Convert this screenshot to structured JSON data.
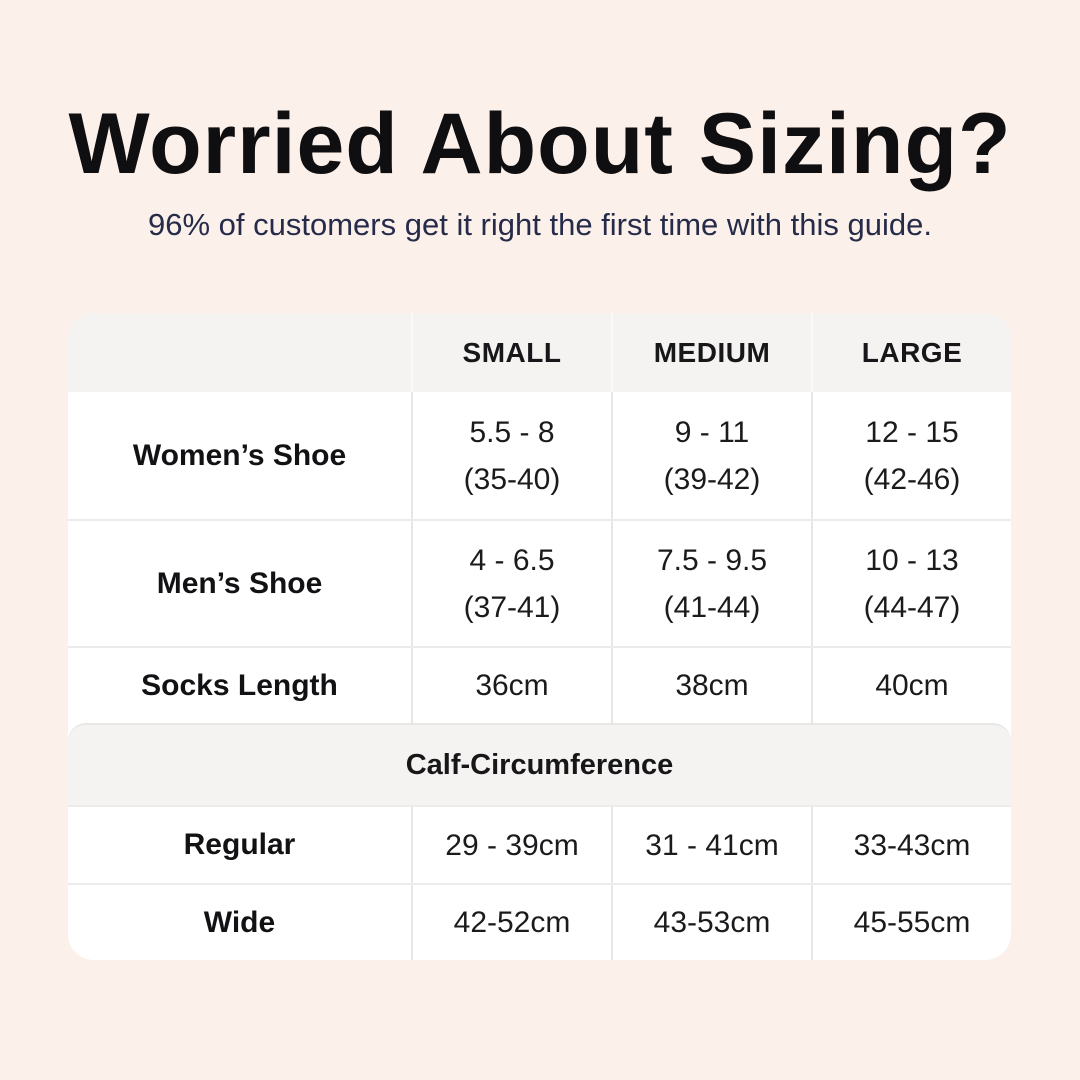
{
  "colors": {
    "background": "#fcf1ea",
    "card": "#ffffff",
    "band_gray": "#f4f3f1",
    "gridline": "#e9e7e5",
    "title_text": "#0f0f12",
    "subtitle_text": "#262b4a",
    "table_text": "#1b1b1e"
  },
  "header": {
    "title": "Worried About Sizing?",
    "subtitle": "96% of customers get it right the first time with this guide."
  },
  "table": {
    "columns": [
      "",
      "SMALL",
      "MEDIUM",
      "LARGE"
    ],
    "rows": [
      {
        "label": "Women’s Shoe",
        "cells": [
          {
            "line1": "5.5 - 8",
            "line2": "(35-40)"
          },
          {
            "line1": "9 - 11",
            "line2": "(39-42)"
          },
          {
            "line1": "12 - 15",
            "line2": "(42-46)"
          }
        ]
      },
      {
        "label": "Men’s Shoe",
        "cells": [
          {
            "line1": "4 - 6.5",
            "line2": "(37-41)"
          },
          {
            "line1": "7.5 - 9.5",
            "line2": "(41-44)"
          },
          {
            "line1": "10 - 13",
            "line2": "(44-47)"
          }
        ]
      },
      {
        "label": "Socks Length",
        "cells": [
          {
            "line1": "36cm"
          },
          {
            "line1": "38cm"
          },
          {
            "line1": "40cm"
          }
        ]
      }
    ],
    "section_title": "Calf-Circumference",
    "section_rows": [
      {
        "label": "Regular",
        "cells": [
          {
            "line1": "29 - 39cm"
          },
          {
            "line1": "31 - 41cm"
          },
          {
            "line1": "33-43cm"
          }
        ]
      },
      {
        "label": "Wide",
        "cells": [
          {
            "line1": "42-52cm"
          },
          {
            "line1": "43-53cm"
          },
          {
            "line1": "45-55cm"
          }
        ]
      }
    ]
  }
}
